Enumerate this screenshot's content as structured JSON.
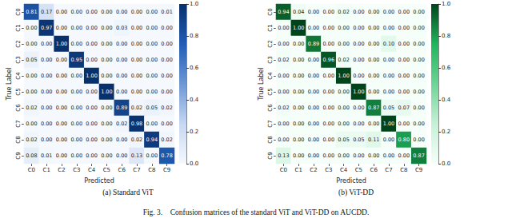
{
  "chart_data": [
    {
      "type": "heatmap",
      "title": "(a) Standard ViT",
      "xlabel": "Predicted",
      "ylabel": "True Label",
      "x_categories": [
        "C0",
        "C1",
        "C2",
        "C3",
        "C4",
        "C5",
        "C6",
        "C7",
        "C8",
        "C9"
      ],
      "y_categories": [
        "C0",
        "C1",
        "C2",
        "C3",
        "C4",
        "C5",
        "C6",
        "C7",
        "C8",
        "C9"
      ],
      "cells": [
        [
          0.81,
          0.17,
          0.0,
          0.0,
          0.0,
          0.0,
          0.0,
          0.0,
          0.0,
          0.01
        ],
        [
          0.0,
          0.97,
          0.0,
          0.0,
          0.0,
          0.0,
          0.03,
          0.0,
          0.0,
          0.0
        ],
        [
          0.0,
          0.0,
          1.0,
          0.0,
          0.0,
          0.0,
          0.0,
          0.0,
          0.0,
          0.0
        ],
        [
          0.05,
          0.0,
          0.0,
          0.95,
          0.0,
          0.0,
          0.0,
          0.0,
          0.0,
          0.0
        ],
        [
          0.0,
          0.0,
          0.0,
          0.0,
          1.0,
          0.0,
          0.0,
          0.0,
          0.0,
          0.0
        ],
        [
          0.0,
          0.0,
          0.0,
          0.0,
          0.0,
          1.0,
          0.0,
          0.0,
          0.0,
          0.0
        ],
        [
          0.02,
          0.0,
          0.0,
          0.0,
          0.0,
          0.0,
          0.89,
          0.02,
          0.05,
          0.02
        ],
        [
          0.0,
          0.0,
          0.0,
          0.0,
          0.0,
          0.0,
          0.02,
          0.98,
          0.0,
          0.0
        ],
        [
          0.02,
          0.0,
          0.0,
          0.0,
          0.0,
          0.0,
          0.0,
          0.02,
          0.94,
          0.02
        ],
        [
          0.08,
          0.01,
          0.0,
          0.0,
          0.0,
          0.0,
          0.0,
          0.13,
          0.0,
          0.78
        ]
      ],
      "value_labels": [
        [
          "0.81",
          "0.17",
          "0.00",
          "0.00",
          "0.00",
          "0.00",
          "0.00",
          "0.00",
          "0.00",
          "0.01"
        ],
        [
          "0.00",
          "0.97",
          "0.00",
          "0.00",
          "0.00",
          "0.00",
          "0.03",
          "0.00",
          "0.00",
          "0.00"
        ],
        [
          "0.00",
          "0.00",
          "1.00",
          "0.00",
          "0.00",
          "0.00",
          "0.00",
          "0.00",
          "0.00",
          "0.00"
        ],
        [
          "0.05",
          "0.00",
          "0.00",
          "0.95",
          "0.00",
          "0.00",
          "0.00",
          "0.00",
          "0.00",
          "0.00"
        ],
        [
          "0.00",
          "0.00",
          "0.00",
          "0.00",
          "1.00",
          "0.00",
          "0.00",
          "0.00",
          "0.00",
          "0.00"
        ],
        [
          "0.00",
          "0.00",
          "0.00",
          "0.00",
          "0.00",
          "1.00",
          "0.00",
          "0.00",
          "0.00",
          "0.00"
        ],
        [
          "0.02",
          "0.00",
          "0.00",
          "0.00",
          "0.00",
          "0.00",
          "0.89",
          "0.02",
          "0.05",
          "0.02"
        ],
        [
          "0.00",
          "0.00",
          "0.00",
          "0.00",
          "0.00",
          "0.00",
          "0.02",
          "0.98",
          "0.00",
          "0.00"
        ],
        [
          "0.02",
          "0.00",
          "0.00",
          "0.00",
          "0.00",
          "0.00",
          "0.00",
          "0.02",
          "0.94",
          "0.02"
        ],
        [
          "0.08",
          "0.01",
          "0.00",
          "0.00",
          "0.00",
          "0.00",
          "0.00",
          "0.13",
          "0.00",
          "0.78"
        ]
      ],
      "data_labels": true,
      "color": "#08306b",
      "colorbar_range": [
        0,
        1
      ],
      "colorbar_ticks": [
        {
          "value": 0,
          "label": "0.0"
        },
        {
          "value": 0.2,
          "label": "0.2"
        },
        {
          "value": 0.4,
          "label": "0.4"
        },
        {
          "value": 0.6,
          "label": "0.6"
        },
        {
          "value": 0.8,
          "label": "0.8"
        },
        {
          "value": 1,
          "label": "1.0"
        }
      ]
    },
    {
      "type": "heatmap",
      "title": "(b) ViT-DD",
      "xlabel": "Predicted",
      "ylabel": "True Label",
      "x_categories": [
        "C0",
        "C1",
        "C2",
        "C3",
        "C4",
        "C5",
        "C6",
        "C7",
        "C8",
        "C9"
      ],
      "y_categories": [
        "C0",
        "C1",
        "C2",
        "C3",
        "C4",
        "C5",
        "C6",
        "C7",
        "C8",
        "C9"
      ],
      "cells": [
        [
          0.94,
          0.04,
          0.0,
          0.0,
          0.02,
          0.0,
          0.0,
          0.0,
          0.0,
          0.0
        ],
        [
          0.0,
          1.0,
          0.0,
          0.0,
          0.0,
          0.0,
          0.0,
          0.0,
          0.0,
          0.0
        ],
        [
          0.0,
          0.0,
          0.89,
          0.0,
          0.0,
          0.0,
          0.0,
          0.1,
          0.0,
          0.0
        ],
        [
          0.02,
          0.0,
          0.0,
          0.96,
          0.02,
          0.0,
          0.0,
          0.0,
          0.0,
          0.0
        ],
        [
          0.0,
          0.0,
          0.0,
          0.0,
          1.0,
          0.0,
          0.0,
          0.0,
          0.0,
          0.0
        ],
        [
          0.0,
          0.0,
          0.0,
          0.0,
          0.0,
          1.0,
          0.0,
          0.0,
          0.0,
          0.0
        ],
        [
          0.02,
          0.0,
          0.0,
          0.0,
          0.0,
          0.0,
          0.87,
          0.05,
          0.07,
          0.0
        ],
        [
          0.0,
          0.0,
          0.0,
          0.0,
          0.0,
          0.0,
          0.0,
          1.0,
          0.0,
          0.0
        ],
        [
          0.0,
          0.0,
          0.0,
          0.0,
          0.05,
          0.05,
          0.11,
          0.0,
          0.8,
          0.0
        ],
        [
          0.13,
          0.0,
          0.0,
          0.0,
          0.0,
          0.0,
          0.0,
          0.0,
          0.0,
          0.87
        ]
      ],
      "value_labels": [
        [
          "0.94",
          "0.04",
          "0.00",
          "0.00",
          "0.02",
          "0.00",
          "0.00",
          "0.00",
          "0.00",
          "0.00"
        ],
        [
          "0.00",
          "1.00",
          "0.00",
          "0.00",
          "0.00",
          "0.00",
          "0.00",
          "0.00",
          "0.00",
          "0.00"
        ],
        [
          "0.00",
          "0.00",
          "0.89",
          "0.00",
          "0.00",
          "0.00",
          "0.00",
          "0.10",
          "0.00",
          "0.00"
        ],
        [
          "0.02",
          "0.00",
          "0.00",
          "0.96",
          "0.02",
          "0.00",
          "0.00",
          "0.00",
          "0.00",
          "0.00"
        ],
        [
          "0.00",
          "0.00",
          "0.00",
          "0.00",
          "1.00",
          "0.00",
          "0.00",
          "0.00",
          "0.00",
          "0.00"
        ],
        [
          "0.00",
          "0.00",
          "0.00",
          "0.00",
          "0.00",
          "1.00",
          "0.00",
          "0.00",
          "0.00",
          "0.00"
        ],
        [
          "0.02",
          "0.00",
          "0.00",
          "0.00",
          "0.00",
          "0.00",
          "0.87",
          "0.05",
          "0.07",
          "0.00"
        ],
        [
          "0.00",
          "0.00",
          "0.00",
          "0.00",
          "0.00",
          "0.00",
          "0.00",
          "1.00",
          "0.00",
          "0.00"
        ],
        [
          "0.00",
          "0.00",
          "0.00",
          "0.00",
          "0.05",
          "0.05",
          "0.11",
          "0.00",
          "0.80",
          "0.00"
        ],
        [
          "0.13",
          "0.00",
          "0.00",
          "0.00",
          "0.00",
          "0.00",
          "0.00",
          "0.00",
          "0.00",
          "0.87"
        ]
      ],
      "data_labels": true,
      "color": "#00441b",
      "colorbar_range": [
        0,
        1
      ],
      "colorbar_ticks": [
        {
          "value": 0,
          "label": "0.0"
        },
        {
          "value": 0.2,
          "label": "0.2"
        },
        {
          "value": 0.4,
          "label": "0.4"
        },
        {
          "value": 0.6,
          "label": "0.6"
        },
        {
          "value": 0.8,
          "label": "0.8"
        },
        {
          "value": 1,
          "label": "1.0"
        }
      ]
    }
  ],
  "figure_caption": "Fig. 3.    Confusion matrices of the standard ViT and ViT-DD on AUCDD."
}
